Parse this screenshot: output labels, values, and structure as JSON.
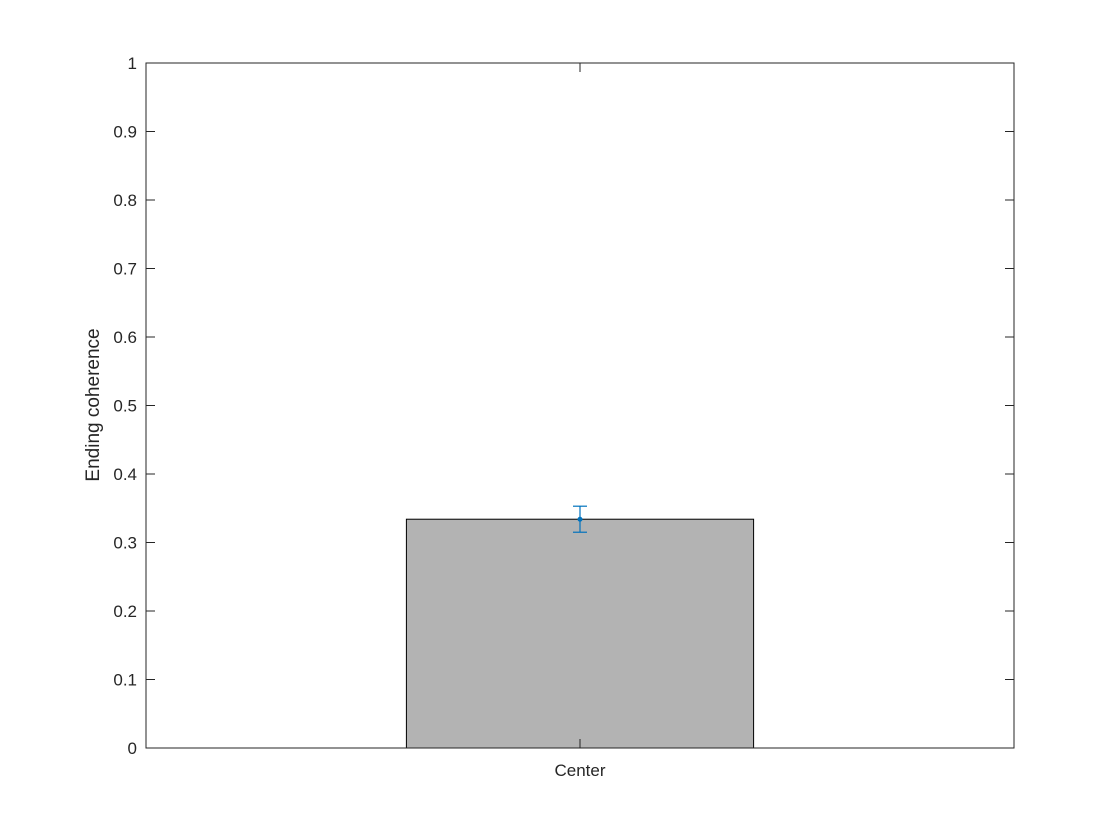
{
  "chart_data": {
    "type": "bar",
    "categories": [
      "Center"
    ],
    "values": [
      0.334
    ],
    "error": [
      {
        "lower": 0.315,
        "upper": 0.353
      }
    ],
    "title": "",
    "xlabel": "",
    "ylabel": "Ending coherence",
    "ylim": [
      0,
      1
    ],
    "yticks": [
      0,
      0.1,
      0.2,
      0.3,
      0.4,
      0.5,
      0.6,
      0.7,
      0.8,
      0.9,
      1
    ],
    "ytick_labels": [
      "0",
      "0.1",
      "0.2",
      "0.3",
      "0.4",
      "0.5",
      "0.6",
      "0.7",
      "0.8",
      "0.9",
      "1"
    ],
    "grid": false,
    "legend": "none",
    "colors": {
      "bar_fill": "#b3b3b3",
      "bar_edge": "#000000",
      "errorbar": "#0072bd",
      "axes": "#262626"
    }
  }
}
